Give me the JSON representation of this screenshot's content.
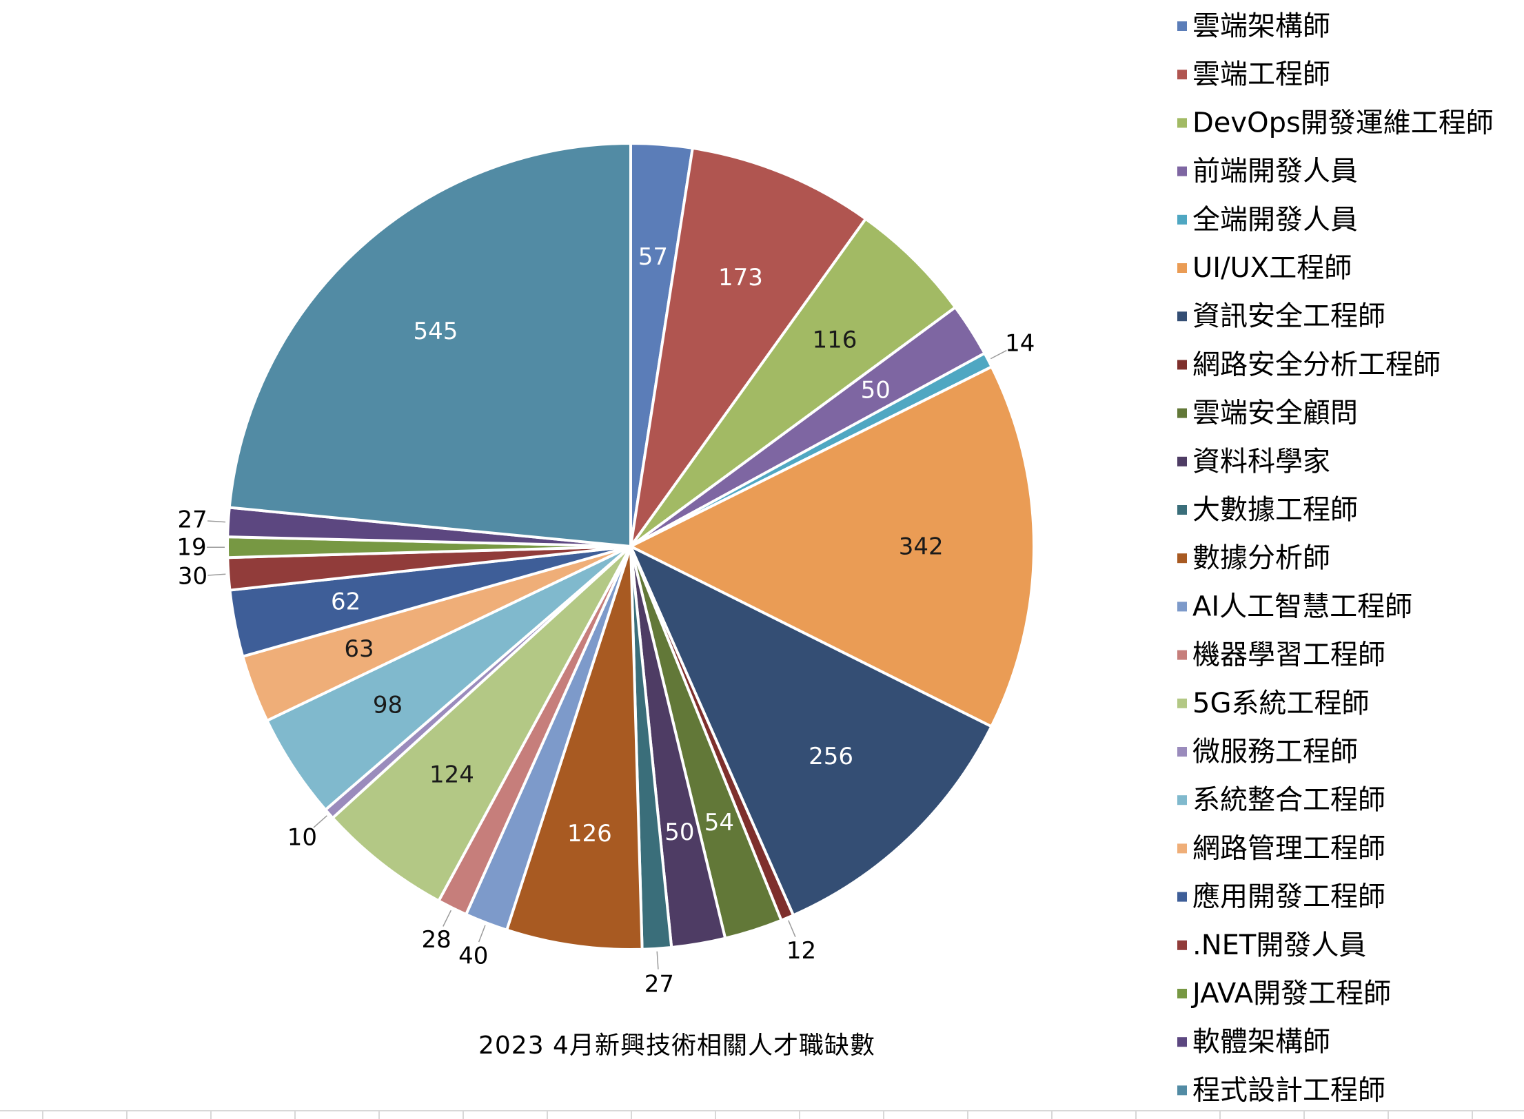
{
  "chart_data": {
    "type": "pie",
    "title": "2023 4月新興技術相關人才職缺數",
    "legend_position": "right",
    "start_angle_deg": 0,
    "direction": "clockwise",
    "categories": [
      "雲端架構師",
      "雲端工程師",
      "DevOps開發運維工程師",
      "前端開發人員",
      "全端開發人員",
      "UI/UX工程師",
      "資訊安全工程師",
      "網路安全分析工程師",
      "雲端安全顧問",
      "資料科學家",
      "大數據工程師",
      "數據分析師",
      "AI人工智慧工程師",
      "機器學習工程師",
      "5G系統工程師",
      "微服務工程師",
      "系統整合工程師",
      "網路管理工程師",
      "應用開發工程師",
      ".NET開發人員",
      "JAVA開發工程師",
      "軟體架構師",
      "程式設計工程師"
    ],
    "values": [
      57,
      173,
      116,
      50,
      14,
      342,
      256,
      12,
      54,
      50,
      27,
      126,
      40,
      28,
      124,
      10,
      98,
      63,
      62,
      30,
      19,
      27,
      545
    ],
    "colors": [
      "#5B7DB8",
      "#B05550",
      "#A2BA64",
      "#7E66A2",
      "#4FA7C2",
      "#EA9C55",
      "#344E74",
      "#7E2F2C",
      "#627838",
      "#4E3C64",
      "#3A6E7A",
      "#A85A22",
      "#7D9ACA",
      "#C67E7B",
      "#B3C885",
      "#9A8BBC",
      "#80B9CD",
      "#EFAE78",
      "#3E5E98",
      "#913C3A",
      "#779843",
      "#5C4780",
      "#528BA4"
    ],
    "label_placement": [
      "in",
      "in",
      "in",
      "in",
      "out",
      "in",
      "in",
      "out",
      "in",
      "in",
      "out",
      "in",
      "out",
      "out",
      "in",
      "out",
      "in",
      "in",
      "in",
      "out",
      "out",
      "out",
      "in"
    ],
    "label_colors": [
      "light",
      "light",
      "dark",
      "light",
      "dark",
      "dark",
      "light",
      "dark",
      "light",
      "light",
      "dark",
      "light",
      "dark",
      "dark",
      "dark",
      "dark",
      "dark",
      "dark",
      "light",
      "dark",
      "dark",
      "dark",
      "light"
    ]
  }
}
